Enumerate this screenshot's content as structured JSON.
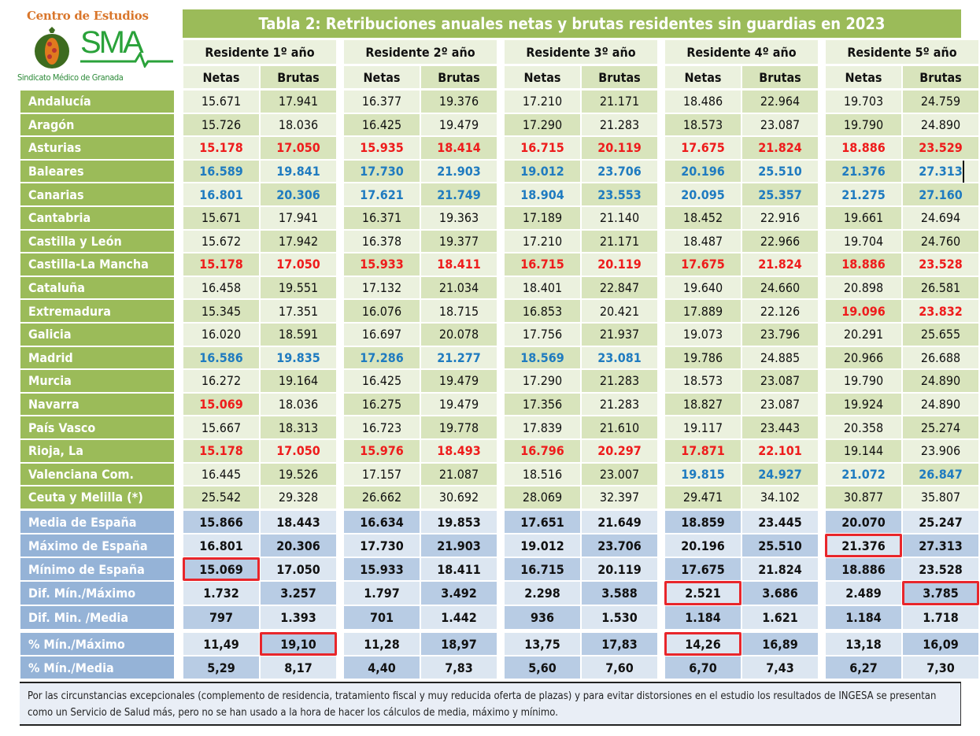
{
  "logo": {
    "top": "Centro de Estudios",
    "brand": "SMA",
    "bottom": "Sindicato Médico de Granada"
  },
  "title": "Tabla 2: Retribuciones anuales netas y brutas residentes sin guardias en 2023",
  "groups": [
    "Residente 1º año",
    "Residente 2º año",
    "Residente 3º año",
    "Residente 4º año",
    "Residente 5º año"
  ],
  "subheaders": {
    "net": "Netas",
    "gross": "Brutas"
  },
  "colors": {
    "green": "#9bbb59",
    "blue_label": "#95b3d7",
    "red": "#ee1c1c",
    "blue": "#1f7bc0",
    "box": "#e8262b"
  },
  "rows": [
    {
      "label": "Andalucía",
      "values": [
        "15.671",
        "17.941",
        "16.377",
        "19.376",
        "17.210",
        "21.171",
        "18.486",
        "22.964",
        "19.703",
        "24.759"
      ],
      "hl": [
        "",
        "",
        "",
        "",
        "",
        "",
        "",
        "",
        "",
        ""
      ]
    },
    {
      "label": "Aragón",
      "values": [
        "15.726",
        "18.036",
        "16.425",
        "19.479",
        "17.290",
        "21.283",
        "18.573",
        "23.087",
        "19.790",
        "24.890"
      ],
      "hl": [
        "",
        "",
        "",
        "",
        "",
        "",
        "",
        "",
        "",
        ""
      ]
    },
    {
      "label": "Asturias",
      "values": [
        "15.178",
        "17.050",
        "15.935",
        "18.414",
        "16.715",
        "20.119",
        "17.675",
        "21.824",
        "18.886",
        "23.529"
      ],
      "hl": [
        "red",
        "red",
        "red",
        "red",
        "red",
        "red",
        "red",
        "red",
        "red",
        "red"
      ]
    },
    {
      "label": "Baleares",
      "values": [
        "16.589",
        "19.841",
        "17.730",
        "21.903",
        "19.012",
        "23.706",
        "20.196",
        "25.510",
        "21.376",
        "27.313"
      ],
      "hl": [
        "blue",
        "blue",
        "blue",
        "blue",
        "blue",
        "blue",
        "blue",
        "blue",
        "blue",
        "blue"
      ]
    },
    {
      "label": "Canarias",
      "values": [
        "16.801",
        "20.306",
        "17.621",
        "21.749",
        "18.904",
        "23.553",
        "20.095",
        "25.357",
        "21.275",
        "27.160"
      ],
      "hl": [
        "blue",
        "blue",
        "blue",
        "blue",
        "blue",
        "blue",
        "blue",
        "blue",
        "blue",
        "blue"
      ]
    },
    {
      "label": "Cantabria",
      "values": [
        "15.671",
        "17.941",
        "16.371",
        "19.363",
        "17.189",
        "21.140",
        "18.452",
        "22.916",
        "19.661",
        "24.694"
      ],
      "hl": [
        "",
        "",
        "",
        "",
        "",
        "",
        "",
        "",
        "",
        ""
      ]
    },
    {
      "label": "Castilla y León",
      "values": [
        "15.672",
        "17.942",
        "16.378",
        "19.377",
        "17.210",
        "21.171",
        "18.487",
        "22.966",
        "19.704",
        "24.760"
      ],
      "hl": [
        "",
        "",
        "",
        "",
        "",
        "",
        "",
        "",
        "",
        ""
      ]
    },
    {
      "label": "Castilla-La Mancha",
      "values": [
        "15.178",
        "17.050",
        "15.933",
        "18.411",
        "16.715",
        "20.119",
        "17.675",
        "21.824",
        "18.886",
        "23.528"
      ],
      "hl": [
        "red",
        "red",
        "red",
        "red",
        "red",
        "red",
        "red",
        "red",
        "red",
        "red"
      ]
    },
    {
      "label": "Cataluña",
      "values": [
        "16.458",
        "19.551",
        "17.132",
        "21.034",
        "18.401",
        "22.847",
        "19.640",
        "24.660",
        "20.898",
        "26.581"
      ],
      "hl": [
        "",
        "",
        "",
        "",
        "",
        "",
        "",
        "",
        "",
        ""
      ]
    },
    {
      "label": "Extremadura",
      "values": [
        "15.345",
        "17.351",
        "16.076",
        "18.715",
        "16.853",
        "20.421",
        "17.889",
        "22.126",
        "19.096",
        "23.832"
      ],
      "hl": [
        "",
        "",
        "",
        "",
        "",
        "",
        "",
        "",
        "red",
        "red"
      ]
    },
    {
      "label": "Galicia",
      "values": [
        "16.020",
        "18.591",
        "16.697",
        "20.078",
        "17.756",
        "21.937",
        "19.073",
        "23.796",
        "20.291",
        "25.655"
      ],
      "hl": [
        "",
        "",
        "",
        "",
        "",
        "",
        "",
        "",
        "",
        ""
      ]
    },
    {
      "label": "Madrid",
      "values": [
        "16.586",
        "19.835",
        "17.286",
        "21.277",
        "18.569",
        "23.081",
        "19.786",
        "24.885",
        "20.966",
        "26.688"
      ],
      "hl": [
        "blue",
        "blue",
        "blue",
        "blue",
        "blue",
        "blue",
        "",
        "",
        "",
        ""
      ]
    },
    {
      "label": "Murcia",
      "values": [
        "16.272",
        "19.164",
        "16.425",
        "19.479",
        "17.290",
        "21.283",
        "18.573",
        "23.087",
        "19.790",
        "24.890"
      ],
      "hl": [
        "",
        "",
        "",
        "",
        "",
        "",
        "",
        "",
        "",
        ""
      ]
    },
    {
      "label": "Navarra",
      "values": [
        "15.069",
        "18.036",
        "16.275",
        "19.479",
        "17.356",
        "21.283",
        "18.827",
        "23.087",
        "19.924",
        "24.890"
      ],
      "hl": [
        "red",
        "",
        "",
        "",
        "",
        "",
        "",
        "",
        "",
        ""
      ]
    },
    {
      "label": "País Vasco",
      "values": [
        "15.667",
        "18.313",
        "16.723",
        "19.778",
        "17.839",
        "21.610",
        "19.117",
        "23.443",
        "20.358",
        "25.274"
      ],
      "hl": [
        "",
        "",
        "",
        "",
        "",
        "",
        "",
        "",
        "",
        ""
      ]
    },
    {
      "label": "Rioja, La",
      "values": [
        "15.178",
        "17.050",
        "15.976",
        "18.493",
        "16.796",
        "20.297",
        "17.871",
        "22.101",
        "19.144",
        "23.906"
      ],
      "hl": [
        "red",
        "red",
        "red",
        "red",
        "red",
        "red",
        "red",
        "red",
        "",
        ""
      ]
    },
    {
      "label": "Valenciana Com.",
      "values": [
        "16.445",
        "19.526",
        "17.157",
        "21.087",
        "18.516",
        "23.007",
        "19.815",
        "24.927",
        "21.072",
        "26.847"
      ],
      "hl": [
        "",
        "",
        "",
        "",
        "",
        "",
        "blue",
        "blue",
        "blue",
        "blue"
      ]
    },
    {
      "label": "Ceuta y Melilla (*)",
      "values": [
        "25.542",
        "29.328",
        "26.662",
        "30.692",
        "28.069",
        "32.397",
        "29.471",
        "34.102",
        "30.877",
        "35.807"
      ],
      "hl": [
        "",
        "",
        "",
        "",
        "",
        "",
        "",
        "",
        "",
        ""
      ]
    }
  ],
  "stats": [
    {
      "label": "Media de España",
      "values": [
        "15.866",
        "18.443",
        "16.634",
        "19.853",
        "17.651",
        "21.649",
        "18.859",
        "23.445",
        "20.070",
        "25.247"
      ],
      "boxed": [
        false,
        false,
        false,
        false,
        false,
        false,
        false,
        false,
        false,
        false
      ]
    },
    {
      "label": "Máximo de España",
      "values": [
        "16.801",
        "20.306",
        "17.730",
        "21.903",
        "19.012",
        "23.706",
        "20.196",
        "25.510",
        "21.376",
        "27.313"
      ],
      "boxed": [
        false,
        false,
        false,
        false,
        false,
        false,
        false,
        false,
        true,
        false
      ]
    },
    {
      "label": "Mínimo de España",
      "values": [
        "15.069",
        "17.050",
        "15.933",
        "18.411",
        "16.715",
        "20.119",
        "17.675",
        "21.824",
        "18.886",
        "23.528"
      ],
      "boxed": [
        true,
        false,
        false,
        false,
        false,
        false,
        false,
        false,
        false,
        false
      ]
    },
    {
      "label": "Dif. Mín./Máximo",
      "values": [
        "1.732",
        "3.257",
        "1.797",
        "3.492",
        "2.298",
        "3.588",
        "2.521",
        "3.686",
        "2.489",
        "3.785"
      ],
      "boxed": [
        false,
        false,
        false,
        false,
        false,
        false,
        true,
        false,
        false,
        true
      ]
    },
    {
      "label": "Dif. Min. /Media",
      "values": [
        "797",
        "1.393",
        "701",
        "1.442",
        "936",
        "1.530",
        "1.184",
        "1.621",
        "1.184",
        "1.718"
      ],
      "boxed": [
        false,
        false,
        false,
        false,
        false,
        false,
        false,
        false,
        false,
        false
      ]
    },
    {
      "label": "% Mín./Máximo",
      "values": [
        "11,49",
        "19,10",
        "11,28",
        "18,97",
        "13,75",
        "17,83",
        "14,26",
        "16,89",
        "13,18",
        "16,09"
      ],
      "boxed": [
        false,
        true,
        false,
        false,
        false,
        false,
        true,
        false,
        false,
        false
      ]
    },
    {
      "label": "% Mín./Media",
      "values": [
        "5,29",
        "8,17",
        "4,40",
        "7,83",
        "5,60",
        "7,60",
        "6,70",
        "7,43",
        "6,27",
        "7,30"
      ],
      "boxed": [
        false,
        false,
        false,
        false,
        false,
        false,
        false,
        false,
        false,
        false
      ]
    }
  ],
  "note": "Por las circunstancias excepcionales (complemento de residencia, tratamiento fiscal y muy reducida oferta de plazas) y para evitar distorsiones en el estudio los resultados de INGESA se presentan como un Servicio de Salud más, pero no se han usado a la hora de hacer los cálculos de media, máximo y mínimo."
}
